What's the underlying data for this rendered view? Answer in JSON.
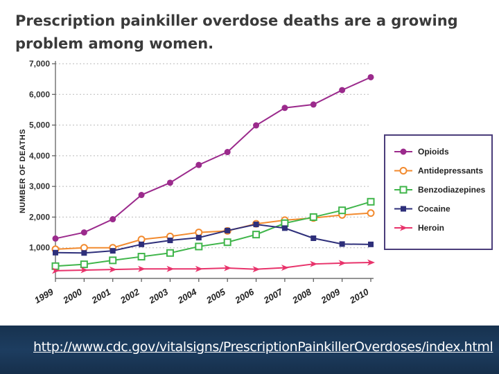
{
  "slide": {
    "title": "Prescription painkiller overdose deaths are a growing problem among women.",
    "source_url": "http://www.cdc.gov/vitalsigns/PrescriptionPainkillerOverdoses/index.html"
  },
  "colors": {
    "footer_bg": "#1b3a5c",
    "opioids": "#9b2a8c",
    "antidepressants": "#f28a2e",
    "benzodiazepines": "#3fb54a",
    "cocaine": "#2e2f7a",
    "heroin": "#e8336b"
  },
  "chart_data": {
    "type": "line",
    "title": "",
    "xlabel": "",
    "ylabel": "NUMBER OF DEATHS",
    "ylim": [
      0,
      7000
    ],
    "y_ticks": [
      "1,000",
      "2,000",
      "3,000",
      "4,000",
      "5,000",
      "6,000",
      "7,000"
    ],
    "y_tick_values": [
      1000,
      2000,
      3000,
      4000,
      5000,
      6000,
      7000
    ],
    "x": [
      "1999",
      "2000",
      "2001",
      "2002",
      "2003",
      "2004",
      "2005",
      "2006",
      "2007",
      "2008",
      "2009",
      "2010"
    ],
    "legend_position": "right",
    "series": [
      {
        "name": "Opioids",
        "marker": "circle",
        "values": [
          1300,
          1500,
          1930,
          2720,
          3120,
          3700,
          4120,
          4990,
          5560,
          5670,
          6140,
          6560
        ]
      },
      {
        "name": "Antidepressants",
        "marker": "hollow-circle",
        "values": [
          950,
          1000,
          1000,
          1270,
          1370,
          1500,
          1550,
          1780,
          1900,
          1970,
          2070,
          2130
        ]
      },
      {
        "name": "Benzodiazepines",
        "marker": "hollow-square",
        "values": [
          400,
          460,
          590,
          710,
          830,
          1040,
          1180,
          1430,
          1800,
          2000,
          2220,
          2500
        ]
      },
      {
        "name": "Cocaine",
        "marker": "square",
        "values": [
          840,
          830,
          900,
          1110,
          1240,
          1330,
          1560,
          1760,
          1640,
          1310,
          1120,
          1110
        ]
      },
      {
        "name": "Heroin",
        "marker": "arrow",
        "values": [
          250,
          270,
          290,
          310,
          310,
          310,
          340,
          300,
          350,
          470,
          500,
          520
        ]
      }
    ]
  }
}
